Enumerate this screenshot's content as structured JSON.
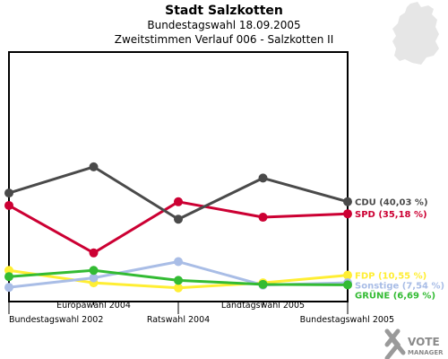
{
  "chart_data": {
    "type": "line",
    "title": "Stadt Salzkotten",
    "subtitle_1": "Bundestagswahl 18.09.2005",
    "subtitle_2": "Zweitstimmen Verlauf 006 - Salzkotten II",
    "categories": [
      "Bundestagswahl 2002",
      "Europawahl 2004",
      "Ratswahl 2004",
      "Landtagswahl 2005",
      "Bundestagswahl 2005"
    ],
    "ylim": [
      0,
      100
    ],
    "grid": false,
    "legend": "right",
    "series": [
      {
        "name": "CDU (40,03 %)",
        "color": "#4a4a4a",
        "values": [
          43.5,
          54.0,
          33.0,
          49.5,
          40.03
        ]
      },
      {
        "name": "SPD (35,18 %)",
        "color": "#cc0033",
        "values": [
          38.5,
          19.5,
          40.0,
          33.8,
          35.18
        ]
      },
      {
        "name": "FDP (10,55 %)",
        "color": "#ffee33",
        "values": [
          12.5,
          7.5,
          5.5,
          7.5,
          10.55
        ]
      },
      {
        "name": "Sonstige (7,54 %)",
        "color": "#a9bde6",
        "values": [
          5.7,
          9.5,
          16.0,
          6.6,
          7.54
        ]
      },
      {
        "name": "GRÜNE (6,69 %)",
        "color": "#33bb33",
        "values": [
          10.0,
          12.5,
          8.5,
          6.9,
          6.69
        ]
      }
    ]
  },
  "brand": {
    "line1": "VOTE",
    "line2": "MANAGER"
  }
}
